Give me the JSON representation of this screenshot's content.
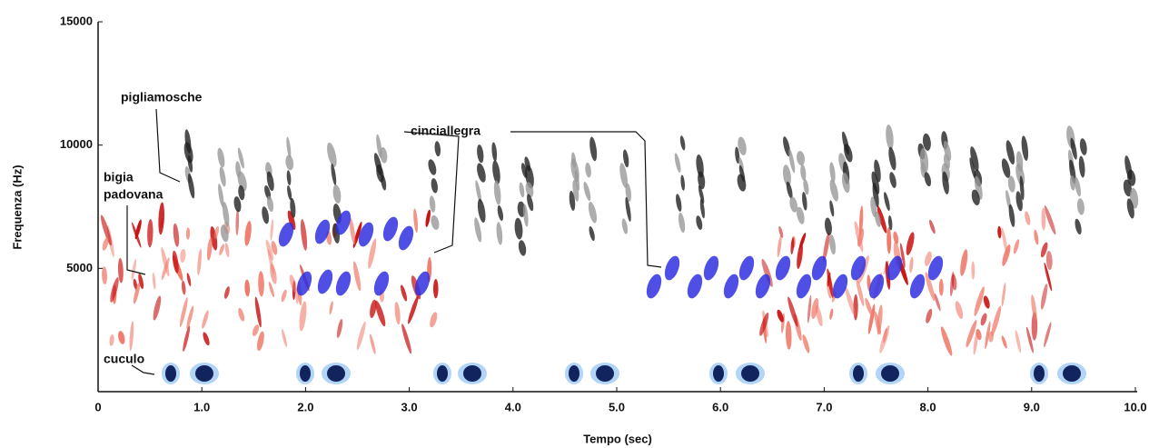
{
  "chart_data": {
    "type": "spectrogram",
    "x_label": "Tempo (sec)",
    "y_label": "Frequenza (Hz)",
    "xlim": [
      0,
      10
    ],
    "ylim": [
      0,
      15000
    ],
    "xticks": [
      0,
      {
        "value": 1,
        "label": "1.0"
      },
      {
        "value": 2,
        "label": "2.0"
      },
      {
        "value": 3,
        "label": "3.0"
      },
      {
        "value": 4,
        "label": "4.0"
      },
      {
        "value": 5,
        "label": "5.0"
      },
      {
        "value": 6,
        "label": "6.0"
      },
      {
        "value": 7,
        "label": "7.0"
      },
      {
        "value": 8,
        "label": "8.0"
      },
      {
        "value": 9,
        "label": "9.0"
      },
      {
        "value": 10,
        "label": "10.0"
      }
    ],
    "yticks": [
      5000,
      10000,
      15000
    ],
    "annotations": [
      "pigliamosche",
      "bigia",
      "padovana",
      "cinciallegra",
      "cuculo"
    ]
  }
}
